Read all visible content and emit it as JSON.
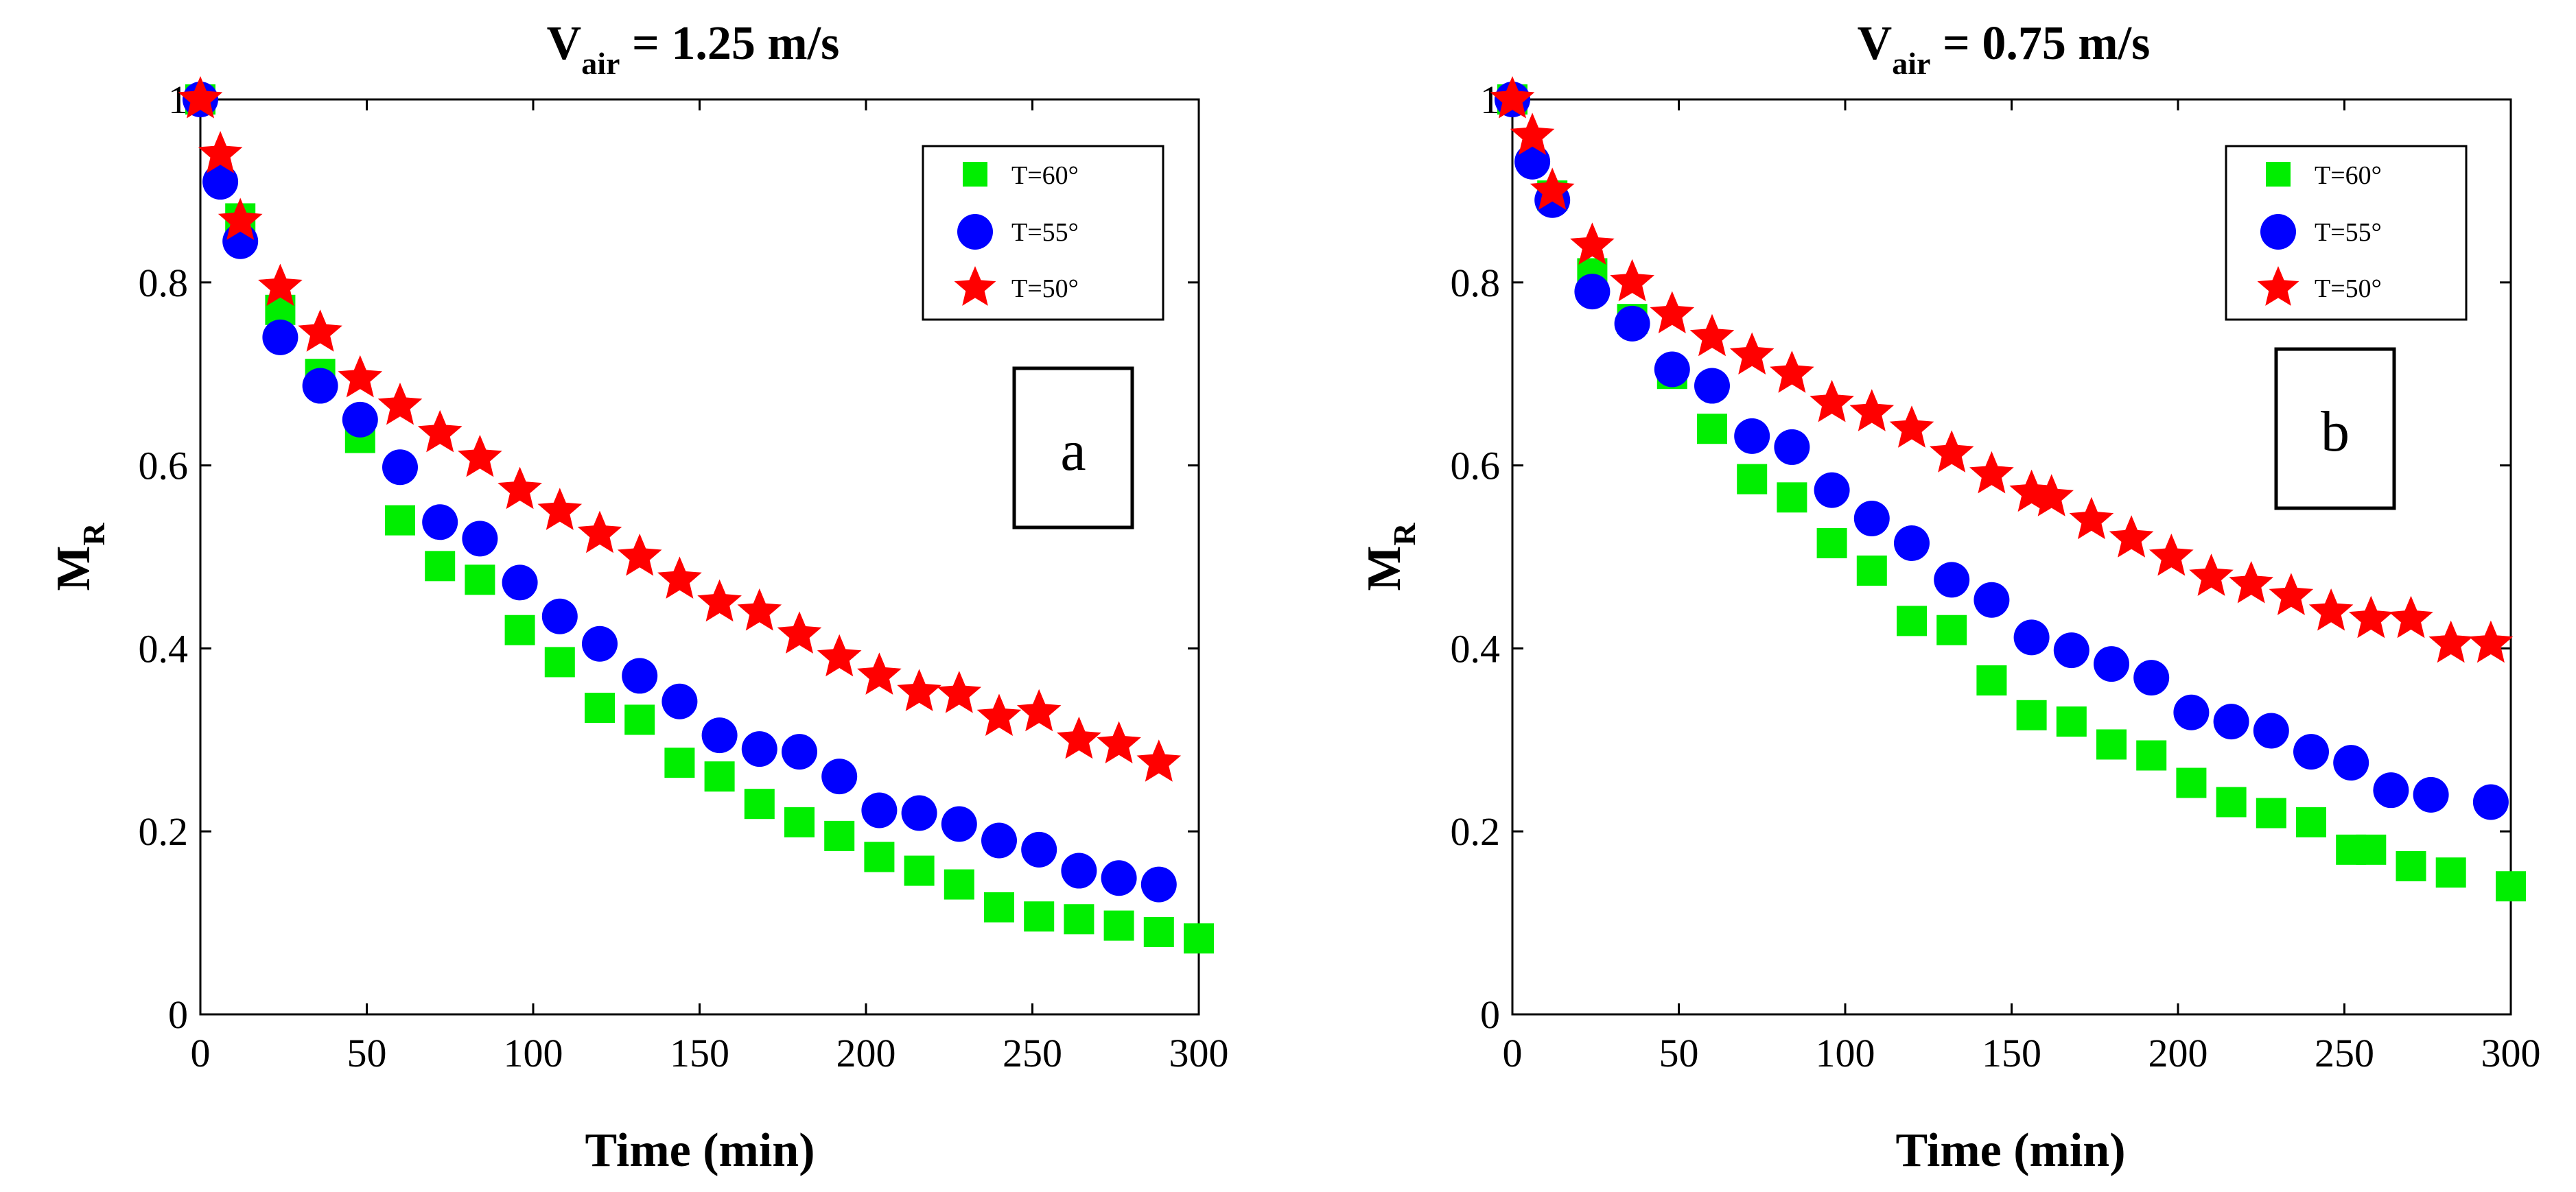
{
  "colors": {
    "t60": "#00ee00",
    "t55": "#0000ff",
    "t50": "#ff0000"
  },
  "chart_data": [
    {
      "type": "scatter",
      "title_main": "V",
      "title_sub": "air",
      "title_rest": " = 1.25 m/s",
      "annotation": "a",
      "xlabel": "Time (min)",
      "ylabel_main": "M",
      "ylabel_sub": "R",
      "xlim": [
        0,
        300
      ],
      "ylim": [
        0,
        1
      ],
      "xticks": [
        0,
        50,
        100,
        150,
        200,
        250,
        300
      ],
      "yticks": [
        0,
        0.2,
        0.4,
        0.6,
        0.8,
        1
      ],
      "ytick_labels": [
        "0",
        "0.2",
        "0.4",
        "0.6",
        "0.8",
        "1"
      ],
      "legend_position": "top-right",
      "series": [
        {
          "name": "T=60°",
          "color_key": "t60",
          "marker": "square",
          "x": [
            0,
            12,
            24,
            36,
            48,
            60,
            72,
            84,
            96,
            108,
            120,
            132,
            144,
            156,
            168,
            180,
            192,
            204,
            216,
            228,
            240,
            252,
            264,
            276,
            288,
            300
          ],
          "y": [
            1.0,
            0.87,
            0.77,
            0.7,
            0.63,
            0.54,
            0.49,
            0.475,
            0.42,
            0.385,
            0.335,
            0.322,
            0.275,
            0.26,
            0.23,
            0.21,
            0.195,
            0.172,
            0.157,
            0.142,
            0.117,
            0.107,
            0.104,
            0.097,
            0.09,
            0.083
          ]
        },
        {
          "name": "T=55°",
          "color_key": "t55",
          "marker": "circle",
          "x": [
            0,
            6,
            12,
            24,
            36,
            48,
            60,
            72,
            84,
            96,
            108,
            120,
            132,
            144,
            156,
            168,
            180,
            192,
            204,
            216,
            228,
            240,
            252,
            264,
            276,
            288
          ],
          "y": [
            1.0,
            0.91,
            0.845,
            0.74,
            0.687,
            0.65,
            0.598,
            0.538,
            0.52,
            0.472,
            0.435,
            0.405,
            0.37,
            0.342,
            0.305,
            0.29,
            0.287,
            0.26,
            0.223,
            0.22,
            0.208,
            0.19,
            0.18,
            0.157,
            0.149,
            0.142
          ]
        },
        {
          "name": "T=50°",
          "color_key": "t50",
          "marker": "star",
          "x": [
            0,
            6,
            12,
            24,
            36,
            48,
            60,
            72,
            84,
            96,
            108,
            120,
            132,
            144,
            156,
            168,
            180,
            192,
            204,
            216,
            228,
            240,
            252,
            264,
            276,
            288
          ],
          "y": [
            1.0,
            0.94,
            0.867,
            0.795,
            0.745,
            0.695,
            0.665,
            0.635,
            0.608,
            0.573,
            0.55,
            0.525,
            0.5,
            0.475,
            0.45,
            0.44,
            0.415,
            0.39,
            0.37,
            0.352,
            0.35,
            0.325,
            0.33,
            0.3,
            0.295,
            0.275
          ]
        }
      ]
    },
    {
      "type": "scatter",
      "title_main": "V",
      "title_sub": "air",
      "title_rest": " = 0.75 m/s",
      "annotation": "b",
      "xlabel": "Time (min)",
      "ylabel_main": "M",
      "ylabel_sub": "R",
      "xlim": [
        0,
        300
      ],
      "ylim": [
        0,
        1
      ],
      "xticks": [
        0,
        50,
        100,
        150,
        200,
        250,
        300
      ],
      "yticks": [
        0,
        0.2,
        0.4,
        0.6,
        0.8,
        1
      ],
      "ytick_labels": [
        "0",
        "0.2",
        "0.4",
        "0.6",
        "0.8",
        "1"
      ],
      "legend_position": "top-right",
      "series": [
        {
          "name": "T=60°",
          "color_key": "t60",
          "marker": "square",
          "x": [
            0,
            12,
            24,
            36,
            48,
            60,
            72,
            84,
            96,
            108,
            120,
            132,
            144,
            156,
            168,
            180,
            192,
            204,
            216,
            228,
            240,
            252,
            258,
            270,
            282,
            300
          ],
          "y": [
            1.0,
            0.895,
            0.81,
            0.76,
            0.7,
            0.64,
            0.585,
            0.565,
            0.515,
            0.485,
            0.43,
            0.42,
            0.365,
            0.327,
            0.32,
            0.295,
            0.283,
            0.253,
            0.232,
            0.22,
            0.21,
            0.18,
            0.18,
            0.162,
            0.155,
            0.14
          ]
        },
        {
          "name": "T=55°",
          "color_key": "t55",
          "marker": "circle",
          "x": [
            0,
            6,
            12,
            24,
            36,
            48,
            60,
            72,
            84,
            96,
            108,
            120,
            132,
            144,
            156,
            168,
            180,
            192,
            204,
            216,
            228,
            240,
            252,
            264,
            276,
            294
          ],
          "y": [
            1.0,
            0.932,
            0.89,
            0.79,
            0.755,
            0.705,
            0.687,
            0.632,
            0.62,
            0.573,
            0.542,
            0.515,
            0.475,
            0.453,
            0.412,
            0.398,
            0.383,
            0.368,
            0.33,
            0.32,
            0.31,
            0.287,
            0.275,
            0.245,
            0.24,
            0.232
          ]
        },
        {
          "name": "T=50°",
          "color_key": "t50",
          "marker": "star",
          "x": [
            0,
            6,
            12,
            24,
            36,
            48,
            60,
            72,
            84,
            96,
            108,
            120,
            132,
            144,
            156,
            162,
            174,
            186,
            198,
            210,
            222,
            234,
            246,
            258,
            270,
            282,
            294
          ],
          "y": [
            1.0,
            0.96,
            0.9,
            0.84,
            0.8,
            0.765,
            0.74,
            0.72,
            0.7,
            0.668,
            0.658,
            0.64,
            0.613,
            0.59,
            0.57,
            0.565,
            0.54,
            0.52,
            0.5,
            0.478,
            0.47,
            0.457,
            0.44,
            0.432,
            0.432,
            0.405,
            0.405
          ]
        }
      ]
    }
  ]
}
